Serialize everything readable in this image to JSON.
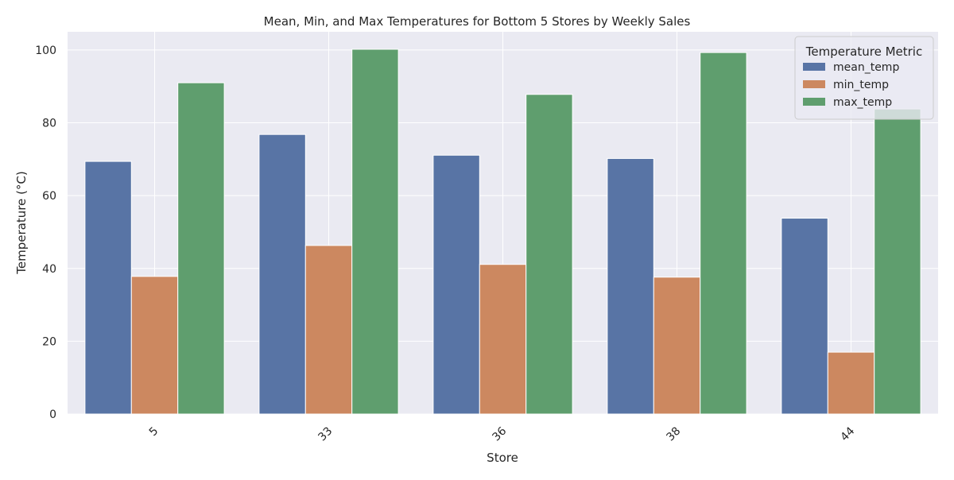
{
  "chart_data": {
    "type": "bar",
    "title": "Mean, Min, and Max Temperatures for Bottom 5 Stores by Weekly Sales",
    "xlabel": "Store",
    "ylabel": "Temperature (°C)",
    "categories": [
      "5",
      "33",
      "36",
      "38",
      "44"
    ],
    "series": [
      {
        "name": "mean_temp",
        "color": "#5874a5",
        "values": [
          69.4,
          76.8,
          71.1,
          70.2,
          53.8
        ]
      },
      {
        "name": "min_temp",
        "color": "#cc8860",
        "values": [
          37.8,
          46.3,
          41.1,
          37.6,
          17.0
        ]
      },
      {
        "name": "max_temp",
        "color": "#5f9e6e",
        "values": [
          91.0,
          100.2,
          87.8,
          99.3,
          83.8
        ]
      }
    ],
    "ylim": [
      0,
      105
    ],
    "yticks": [
      0,
      20,
      40,
      60,
      80,
      100
    ],
    "grid": true,
    "legend": {
      "title": "Temperature Metric",
      "placement": "top-right"
    }
  }
}
